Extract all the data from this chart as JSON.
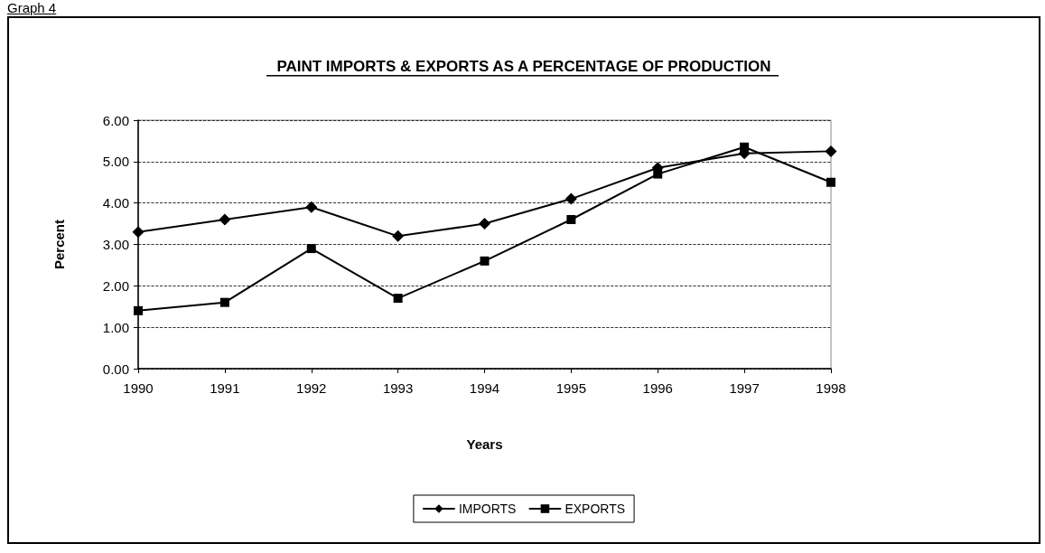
{
  "chart_data": {
    "type": "line",
    "title": "PAINT IMPORTS & EXPORTS AS A PERCENTAGE OF PRODUCTION",
    "xlabel": "Years",
    "ylabel": "Percent",
    "annotations": [
      "Graph 4"
    ],
    "categories": [
      "1990",
      "1991",
      "1992",
      "1993",
      "1994",
      "1995",
      "1996",
      "1997",
      "1998"
    ],
    "series": [
      {
        "name": "IMPORTS",
        "color": "#000000",
        "marker": "diamond",
        "values": [
          3.3,
          3.6,
          3.9,
          3.2,
          3.5,
          4.1,
          4.85,
          5.2,
          5.25
        ]
      },
      {
        "name": "EXPORTS",
        "color": "#000000",
        "marker": "square",
        "values": [
          1.4,
          1.6,
          2.9,
          1.7,
          2.6,
          3.6,
          4.7,
          5.35,
          4.5
        ]
      }
    ],
    "ylim": [
      0,
      6
    ],
    "yticks": [
      {
        "value": 0,
        "label": "0.00"
      },
      {
        "value": 1,
        "label": "1.00"
      },
      {
        "value": 2,
        "label": "2.00"
      },
      {
        "value": 3,
        "label": "3.00"
      },
      {
        "value": 4,
        "label": "4.00"
      },
      {
        "value": 5,
        "label": "5.00"
      },
      {
        "value": 6,
        "label": "6.00"
      }
    ],
    "grid": "y",
    "legend": "bottom",
    "line_style": "solid"
  }
}
